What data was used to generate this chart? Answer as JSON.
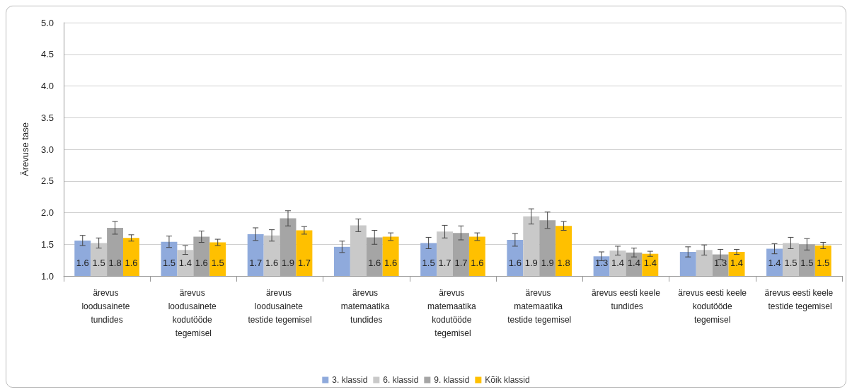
{
  "chart_data": {
    "type": "bar",
    "ylabel": "Ärevuse tase",
    "categories": [
      "ärevus loodusainete tundides",
      "ärevus loodusainete kodutööde tegemisel",
      "ärevus loodusainete testide tegemisel",
      "ärevus matemaatika tundides",
      "ärevus matemaatika kodutööde tegemisel",
      "ärevus matemaatika testide tegemisel",
      "ärevus eesti keele tundides",
      "ärevus eesti keele kodutööde tegemisel",
      "ärevus eesti keele testide tegemisel"
    ],
    "series": [
      {
        "name": "3. klassid",
        "color": "#8faadc",
        "values": [
          1.56,
          1.54,
          1.66,
          1.46,
          1.52,
          1.57,
          1.31,
          1.38,
          1.43
        ],
        "errors": [
          0.08,
          0.09,
          0.1,
          0.09,
          0.09,
          0.1,
          0.07,
          0.08,
          0.08
        ],
        "value_labels": [
          "1.6",
          "1.5",
          "1.7",
          null,
          "1.5",
          "1.6",
          "1.3",
          null,
          "1.4"
        ]
      },
      {
        "name": "6. klassid",
        "color": "#c9c9c9",
        "values": [
          1.52,
          1.41,
          1.64,
          1.8,
          1.7,
          1.94,
          1.4,
          1.41,
          1.52
        ],
        "errors": [
          0.08,
          0.07,
          0.09,
          0.1,
          0.1,
          0.12,
          0.07,
          0.08,
          0.09
        ],
        "value_labels": [
          "1.5",
          "1.4",
          "1.6",
          null,
          "1.7",
          "1.9",
          "1.4",
          null,
          "1.5"
        ]
      },
      {
        "name": "9. klassid",
        "color": "#a5a5a5",
        "values": [
          1.76,
          1.62,
          1.91,
          1.61,
          1.68,
          1.88,
          1.37,
          1.34,
          1.5
        ],
        "errors": [
          0.1,
          0.09,
          0.12,
          0.11,
          0.11,
          0.13,
          0.07,
          0.08,
          0.09
        ],
        "value_labels": [
          "1.8",
          "1.6",
          "1.9",
          "1.6",
          "1.7",
          "1.9",
          "1.4",
          "1.3",
          "1.5"
        ]
      },
      {
        "name": "Kõik klassid",
        "color": "#ffc000",
        "values": [
          1.6,
          1.53,
          1.72,
          1.62,
          1.62,
          1.79,
          1.35,
          1.38,
          1.48
        ],
        "errors": [
          0.05,
          0.05,
          0.06,
          0.06,
          0.06,
          0.07,
          0.04,
          0.04,
          0.05
        ],
        "value_labels": [
          "1.6",
          "1.5",
          "1.7",
          "1.6",
          "1.6",
          "1.8",
          "1.4",
          "1.4",
          "1.5"
        ]
      }
    ],
    "ylim": [
      1.0,
      5.0
    ],
    "yticks": [
      {
        "value": 1,
        "label": "1.0"
      },
      {
        "value": 1.5,
        "label": "1.5"
      },
      {
        "value": 2,
        "label": "2.0"
      },
      {
        "value": 2.5,
        "label": "2.5"
      },
      {
        "value": 3,
        "label": "3.0"
      },
      {
        "value": 3.5,
        "label": "3.5"
      },
      {
        "value": 4,
        "label": "4.0"
      },
      {
        "value": 4.5,
        "label": "4.5"
      },
      {
        "value": 5,
        "label": "5.0"
      }
    ],
    "grid": "y",
    "legend": "bottom"
  }
}
